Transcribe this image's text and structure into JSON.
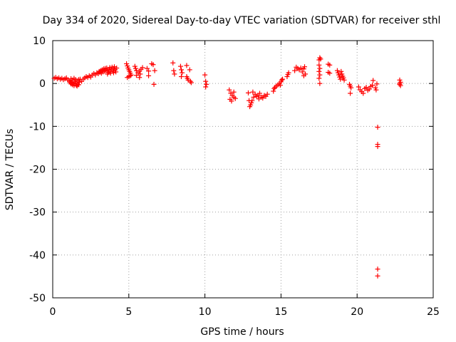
{
  "chart_data": {
    "type": "scatter",
    "title": "Day 334 of 2020, Sidereal Day-to-day VTEC variation (SDTVAR) for receiver sthl",
    "xlabel": "GPS time / hours",
    "ylabel": "SDTVAR / TECUs",
    "xlim": [
      0,
      25
    ],
    "ylim": [
      -50,
      10
    ],
    "x_ticks": [
      0,
      5,
      10,
      15,
      20,
      25
    ],
    "y_ticks": [
      -50,
      -40,
      -30,
      -20,
      -10,
      0,
      10
    ],
    "x_tick_labels": [
      "0",
      "5",
      "10",
      "15",
      "20",
      "25"
    ],
    "y_tick_labels": [
      "-50",
      "-40",
      "-30",
      "-20",
      "-10",
      "0",
      "10"
    ],
    "grid": true,
    "marker": "+",
    "color": "#ff0000",
    "series": [
      {
        "name": "sthl",
        "points": [
          [
            0.1,
            1.2
          ],
          [
            0.2,
            1.4
          ],
          [
            0.3,
            1.1
          ],
          [
            0.4,
            1.3
          ],
          [
            0.5,
            1.0
          ],
          [
            0.6,
            1.2
          ],
          [
            0.7,
            0.9
          ],
          [
            0.8,
            1.1
          ],
          [
            0.9,
            1.3
          ],
          [
            1.0,
            0.8
          ],
          [
            1.1,
            0.5
          ],
          [
            1.15,
            0.2
          ],
          [
            1.2,
            -0.1
          ],
          [
            1.25,
            0.3
          ],
          [
            1.3,
            -0.3
          ],
          [
            1.35,
            0.0
          ],
          [
            1.4,
            -0.5
          ],
          [
            1.45,
            0.4
          ],
          [
            1.5,
            0.1
          ],
          [
            1.55,
            -0.4
          ],
          [
            1.6,
            0.6
          ],
          [
            1.65,
            -0.2
          ],
          [
            1.7,
            0.9
          ],
          [
            1.75,
            0.3
          ],
          [
            1.8,
            1.0
          ],
          [
            1.2,
            1.1
          ],
          [
            1.3,
            0.8
          ],
          [
            1.4,
            1.2
          ],
          [
            1.5,
            0.9
          ],
          [
            1.6,
            -0.6
          ],
          [
            1.7,
            -0.3
          ],
          [
            1.9,
            0.5
          ],
          [
            2.0,
            1.0
          ],
          [
            2.1,
            1.3
          ],
          [
            2.2,
            1.6
          ],
          [
            2.3,
            1.4
          ],
          [
            2.4,
            1.8
          ],
          [
            2.5,
            1.5
          ],
          [
            2.6,
            2.0
          ],
          [
            2.7,
            2.3
          ],
          [
            2.8,
            2.0
          ],
          [
            2.9,
            2.5
          ],
          [
            3.0,
            2.3
          ],
          [
            3.05,
            2.8
          ],
          [
            3.1,
            2.6
          ],
          [
            3.15,
            3.0
          ],
          [
            3.2,
            2.4
          ],
          [
            3.25,
            3.2
          ],
          [
            3.3,
            2.7
          ],
          [
            3.35,
            3.4
          ],
          [
            3.4,
            2.9
          ],
          [
            3.45,
            3.5
          ],
          [
            3.5,
            3.0
          ],
          [
            3.55,
            3.6
          ],
          [
            3.6,
            3.1
          ],
          [
            3.65,
            2.6
          ],
          [
            3.7,
            3.3
          ],
          [
            3.75,
            3.7
          ],
          [
            3.8,
            2.8
          ],
          [
            3.85,
            3.4
          ],
          [
            3.9,
            3.8
          ],
          [
            3.95,
            3.0
          ],
          [
            4.0,
            3.5
          ],
          [
            4.05,
            3.9
          ],
          [
            4.1,
            3.2
          ],
          [
            4.15,
            2.7
          ],
          [
            4.2,
            3.6
          ],
          [
            3.6,
            2.2
          ],
          [
            3.8,
            2.4
          ],
          [
            4.0,
            2.5
          ],
          [
            4.85,
            4.6
          ],
          [
            4.9,
            4.1
          ],
          [
            4.95,
            3.6
          ],
          [
            5.0,
            3.2
          ],
          [
            5.05,
            2.8
          ],
          [
            5.1,
            2.4
          ],
          [
            5.15,
            2.0
          ],
          [
            4.9,
            1.4
          ],
          [
            5.0,
            1.6
          ],
          [
            5.1,
            1.8
          ],
          [
            5.4,
            4.0
          ],
          [
            5.45,
            3.5
          ],
          [
            5.5,
            3.0
          ],
          [
            5.6,
            2.5
          ],
          [
            5.7,
            2.9
          ],
          [
            5.75,
            2.2
          ],
          [
            5.8,
            3.3
          ],
          [
            5.9,
            3.7
          ],
          [
            5.5,
            1.9
          ],
          [
            5.7,
            1.4
          ],
          [
            6.2,
            3.5
          ],
          [
            6.3,
            2.9
          ],
          [
            6.5,
            4.6
          ],
          [
            6.6,
            4.4
          ],
          [
            6.7,
            3.0
          ],
          [
            6.65,
            -0.2
          ],
          [
            6.3,
            1.8
          ],
          [
            7.9,
            4.8
          ],
          [
            7.95,
            3.0
          ],
          [
            8.0,
            2.2
          ],
          [
            8.4,
            4.0
          ],
          [
            8.45,
            3.2
          ],
          [
            8.5,
            2.5
          ],
          [
            8.45,
            1.6
          ],
          [
            8.8,
            4.2
          ],
          [
            8.8,
            1.6
          ],
          [
            8.85,
            1.2
          ],
          [
            8.9,
            0.8
          ],
          [
            9.0,
            3.2
          ],
          [
            9.05,
            0.5
          ],
          [
            9.1,
            0.2
          ],
          [
            10.0,
            2.0
          ],
          [
            10.05,
            0.5
          ],
          [
            10.1,
            -0.2
          ],
          [
            10.05,
            -0.8
          ],
          [
            11.6,
            -1.5
          ],
          [
            11.7,
            -2.3
          ],
          [
            11.8,
            -2.8
          ],
          [
            11.9,
            -3.2
          ],
          [
            11.65,
            -3.7
          ],
          [
            11.75,
            -4.1
          ],
          [
            11.9,
            -2.0
          ],
          [
            12.0,
            -3.5
          ],
          [
            12.85,
            -2.2
          ],
          [
            12.9,
            -4.0
          ],
          [
            12.95,
            -5.4
          ],
          [
            13.0,
            -5.0
          ],
          [
            13.05,
            -4.5
          ],
          [
            13.1,
            -4.0
          ],
          [
            13.15,
            -2.0
          ],
          [
            13.2,
            -3.2
          ],
          [
            13.3,
            -2.5
          ],
          [
            13.4,
            -3.0
          ],
          [
            13.5,
            -2.8
          ],
          [
            13.55,
            -3.6
          ],
          [
            13.6,
            -2.3
          ],
          [
            13.7,
            -3.2
          ],
          [
            13.8,
            -3.4
          ],
          [
            13.9,
            -2.8
          ],
          [
            14.0,
            -3.0
          ],
          [
            14.1,
            -2.5
          ],
          [
            14.5,
            -1.8
          ],
          [
            14.55,
            -1.2
          ],
          [
            14.6,
            -0.9
          ],
          [
            14.7,
            -0.6
          ],
          [
            14.8,
            -0.3
          ],
          [
            14.9,
            0.0
          ],
          [
            15.0,
            0.4
          ],
          [
            15.05,
            0.8
          ],
          [
            15.1,
            1.0
          ],
          [
            14.95,
            -0.4
          ],
          [
            15.4,
            1.6
          ],
          [
            15.45,
            2.1
          ],
          [
            15.5,
            2.5
          ],
          [
            15.9,
            3.0
          ],
          [
            16.0,
            3.8
          ],
          [
            16.1,
            3.5
          ],
          [
            16.2,
            3.2
          ],
          [
            16.3,
            3.6
          ],
          [
            16.4,
            2.7
          ],
          [
            16.5,
            3.4
          ],
          [
            16.6,
            2.2
          ],
          [
            16.55,
            3.9
          ],
          [
            16.5,
            1.8
          ],
          [
            17.5,
            5.5
          ],
          [
            17.55,
            6.0
          ],
          [
            17.6,
            5.7
          ],
          [
            17.5,
            4.3
          ],
          [
            17.55,
            3.5
          ],
          [
            17.5,
            2.8
          ],
          [
            17.55,
            2.0
          ],
          [
            17.5,
            1.2
          ],
          [
            17.55,
            0.0
          ],
          [
            18.1,
            4.5
          ],
          [
            18.2,
            4.3
          ],
          [
            18.1,
            2.6
          ],
          [
            18.2,
            2.4
          ],
          [
            18.7,
            3.0
          ],
          [
            18.75,
            2.5
          ],
          [
            18.8,
            2.0
          ],
          [
            18.85,
            1.5
          ],
          [
            18.9,
            1.0
          ],
          [
            18.95,
            2.8
          ],
          [
            19.0,
            2.2
          ],
          [
            19.05,
            1.7
          ],
          [
            19.1,
            1.3
          ],
          [
            19.15,
            0.8
          ],
          [
            19.5,
            -0.2
          ],
          [
            19.55,
            -0.6
          ],
          [
            19.6,
            -1.0
          ],
          [
            19.55,
            -2.3
          ],
          [
            20.1,
            -0.8
          ],
          [
            20.2,
            -1.5
          ],
          [
            20.3,
            -1.9
          ],
          [
            20.4,
            -2.3
          ],
          [
            20.5,
            -1.2
          ],
          [
            20.6,
            -0.9
          ],
          [
            20.7,
            -1.6
          ],
          [
            20.8,
            -1.3
          ],
          [
            20.9,
            -0.7
          ],
          [
            21.0,
            -0.4
          ],
          [
            21.05,
            0.7
          ],
          [
            21.2,
            -1.0
          ],
          [
            21.25,
            -1.5
          ],
          [
            21.3,
            -0.1
          ],
          [
            21.35,
            -10.2
          ],
          [
            21.35,
            -14.2
          ],
          [
            21.35,
            -14.7
          ],
          [
            21.35,
            -43.3
          ],
          [
            21.35,
            -44.9
          ],
          [
            22.8,
            0.8
          ],
          [
            22.85,
            0.3
          ],
          [
            22.8,
            -0.2
          ],
          [
            22.85,
            -0.5
          ],
          [
            22.8,
            0.0
          ]
        ]
      }
    ]
  }
}
